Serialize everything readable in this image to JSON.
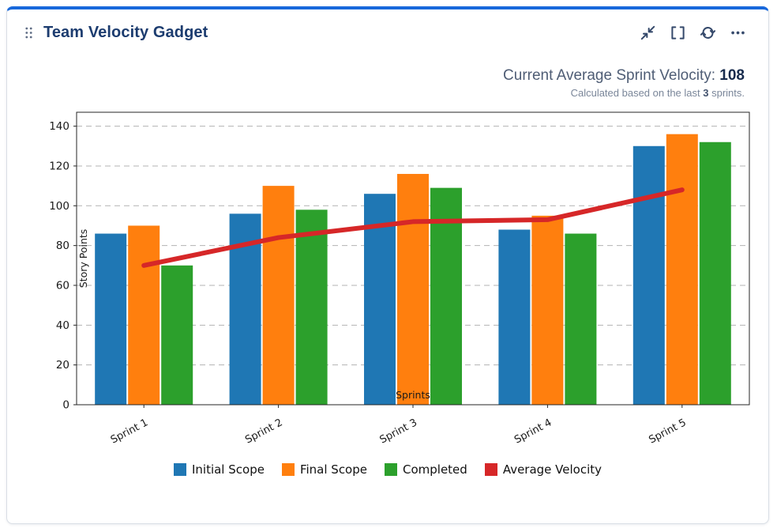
{
  "card": {
    "title": "Team Velocity Gadget",
    "toolbar": {
      "icons": [
        "drag-handle-icon",
        "collapse-icon",
        "fullscreen-icon",
        "refresh-icon",
        "more-icon"
      ]
    },
    "stats": {
      "label": "Current Average Sprint Velocity: ",
      "value": "108",
      "subtitle_prefix": "Calculated based on the last ",
      "subtitle_bold": "3",
      "subtitle_suffix": " sprints."
    }
  },
  "chart_data": {
    "type": "bar",
    "title": "",
    "categories": [
      "Sprint 1",
      "Sprint 2",
      "Sprint 3",
      "Sprint 4",
      "Sprint 5"
    ],
    "series": [
      {
        "name": "Initial Scope",
        "color": "#1f77b4",
        "values": [
          86,
          96,
          106,
          88,
          130
        ]
      },
      {
        "name": "Final Scope",
        "color": "#ff7f0e",
        "values": [
          90,
          110,
          116,
          95,
          136
        ]
      },
      {
        "name": "Completed",
        "color": "#2ca02c",
        "values": [
          70,
          98,
          109,
          86,
          132
        ]
      }
    ],
    "line": {
      "name": "Average Velocity",
      "color": "#d62728",
      "values": [
        70,
        84,
        92,
        93,
        108
      ]
    },
    "xlabel": "Sprints",
    "ylabel": "Story Points",
    "ylim": [
      0,
      147
    ],
    "yticks": [
      0,
      20,
      40,
      60,
      80,
      100,
      120,
      140
    ],
    "grid": "horizontal-dashed",
    "legend_position": "bottom"
  },
  "colors": {
    "accent": "#1868db",
    "title": "#1c3c6f",
    "muted": "#7a8699",
    "icon": "#35496b"
  }
}
